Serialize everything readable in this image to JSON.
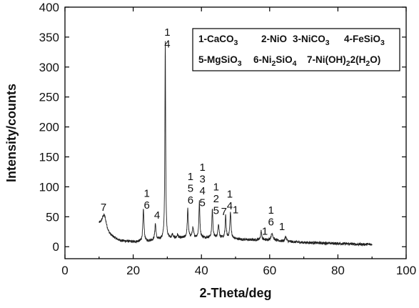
{
  "chart_data": {
    "type": "line",
    "xlabel": "2-Theta/deg",
    "ylabel": "Intensity/counts",
    "xlim": [
      0,
      100
    ],
    "ylim": [
      -20,
      400
    ],
    "xticks": [
      0,
      20,
      40,
      60,
      80,
      100
    ],
    "yticks": [
      0,
      50,
      100,
      150,
      200,
      250,
      300,
      350,
      400
    ],
    "legend_position": "top-right",
    "legend": [
      {
        "key": "1",
        "text": "CaCO",
        "sub": "3"
      },
      {
        "key": "2",
        "text": "NiO",
        "sub": ""
      },
      {
        "key": "3",
        "text": "NiCO",
        "sub": "3"
      },
      {
        "key": "4",
        "text": "FeSiO",
        "sub": "3"
      },
      {
        "key": "5",
        "text": "MgSiO",
        "sub": "3"
      },
      {
        "key": "6",
        "text": "Ni",
        "sub": "2",
        "text2": "SiO",
        "sub2": "4"
      },
      {
        "key": "7",
        "text": "Ni(OH)",
        "sub": "2",
        "text2": "2(H",
        "sub2": "2",
        "text3": "O)"
      }
    ],
    "pattern": {
      "x_range": [
        10,
        90
      ],
      "baseline": [
        [
          10,
          35
        ],
        [
          13,
          18
        ],
        [
          16,
          10
        ],
        [
          20,
          8
        ],
        [
          24,
          9
        ],
        [
          28,
          12
        ],
        [
          32,
          14
        ],
        [
          36,
          15
        ],
        [
          40,
          15
        ],
        [
          44,
          15
        ],
        [
          48,
          14
        ],
        [
          52,
          12
        ],
        [
          56,
          11
        ],
        [
          60,
          11
        ],
        [
          64,
          9
        ],
        [
          70,
          7
        ],
        [
          76,
          6
        ],
        [
          82,
          5
        ],
        [
          86,
          4
        ],
        [
          90,
          4
        ]
      ],
      "peaks": [
        {
          "x": 11.5,
          "y": 53,
          "w": 0.8
        },
        {
          "x": 23.0,
          "y": 62,
          "w": 0.2
        },
        {
          "x": 26.5,
          "y": 38,
          "w": 0.2
        },
        {
          "x": 29.4,
          "y": 345,
          "w": 0.13
        },
        {
          "x": 31.5,
          "y": 20,
          "w": 0.2
        },
        {
          "x": 33.0,
          "y": 20,
          "w": 0.2
        },
        {
          "x": 36.0,
          "y": 63,
          "w": 0.18
        },
        {
          "x": 37.5,
          "y": 30,
          "w": 0.25
        },
        {
          "x": 39.4,
          "y": 75,
          "w": 0.17
        },
        {
          "x": 43.2,
          "y": 63,
          "w": 0.17
        },
        {
          "x": 45.0,
          "y": 38,
          "w": 0.2
        },
        {
          "x": 47.1,
          "y": 52,
          "w": 0.17
        },
        {
          "x": 48.5,
          "y": 57,
          "w": 0.2
        },
        {
          "x": 56.6,
          "y": 12,
          "w": 0.2
        },
        {
          "x": 57.5,
          "y": 26,
          "w": 0.2
        },
        {
          "x": 60.7,
          "y": 22,
          "w": 0.35
        },
        {
          "x": 64.7,
          "y": 17,
          "w": 0.25
        }
      ]
    },
    "peak_annotations": [
      {
        "x": 11.3,
        "labels": [
          "7"
        ],
        "y_top": 60
      },
      {
        "x": 24.0,
        "labels": [
          "1",
          "6"
        ],
        "y_top": 83
      },
      {
        "x": 27.0,
        "labels": [
          "4"
        ],
        "y_top": 47
      },
      {
        "x": 30.0,
        "labels": [
          "1",
          "4"
        ],
        "y_top": 352
      },
      {
        "x": 36.8,
        "labels": [
          "1",
          "5",
          "6"
        ],
        "y_top": 111
      },
      {
        "x": 40.3,
        "labels": [
          "1",
          "3",
          "4",
          "5"
        ],
        "y_top": 127
      },
      {
        "x": 44.3,
        "labels": [
          "1",
          "2",
          "5"
        ],
        "y_top": 94
      },
      {
        "x": 46.6,
        "labels": [
          "7"
        ],
        "y_top": 53
      },
      {
        "x": 48.3,
        "labels": [
          "1",
          "4"
        ],
        "y_top": 82
      },
      {
        "x": 50.0,
        "labels": [
          "1"
        ],
        "y_top": 56
      },
      {
        "x": 58.6,
        "labels": [
          "1"
        ],
        "y_top": 20
      },
      {
        "x": 60.4,
        "labels": [
          "1",
          "6"
        ],
        "y_top": 55
      },
      {
        "x": 63.6,
        "labels": [
          "1"
        ],
        "y_top": 28
      }
    ]
  }
}
